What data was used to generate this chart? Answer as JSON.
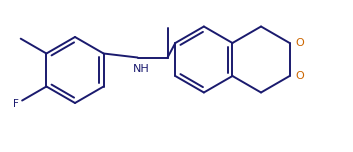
{
  "bg_color": "#ffffff",
  "bond_color": "#1a1a6e",
  "lw": 1.4,
  "fig_w": 3.53,
  "fig_h": 1.52,
  "dpi": 100,
  "bl": 0.32,
  "xlim": [
    0.0,
    4.2
  ],
  "ylim": [
    -0.15,
    1.7
  ],
  "font_size": 7.5,
  "o_color": "#cc6600"
}
